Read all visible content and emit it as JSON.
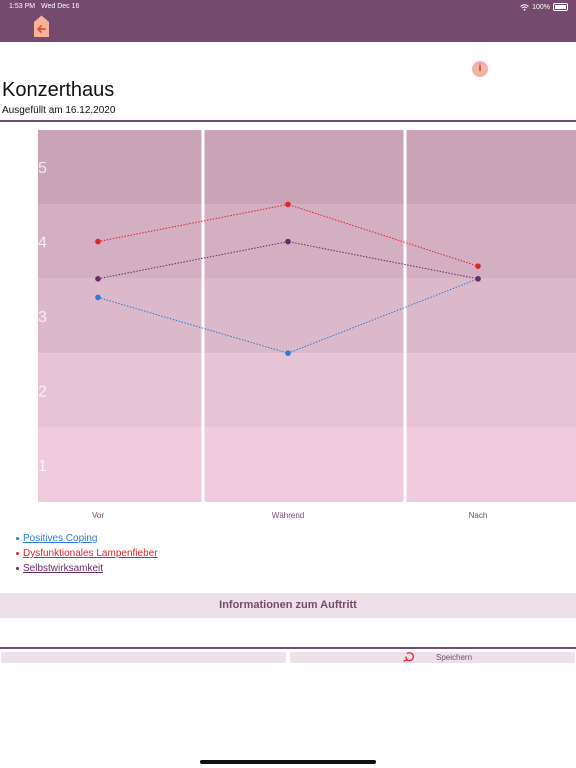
{
  "status_bar": {
    "time": "1:53 PM",
    "date": "Wed Dec 16",
    "battery": "100%"
  },
  "header": {
    "title": "Konzerthaus",
    "subtitle": "Ausgefüllt am 16.12.2020"
  },
  "colors": {
    "brand": "#744b6e",
    "series_blue": "#2b7bd8",
    "series_red": "#e0242b",
    "series_purple": "#6b2c66"
  },
  "chart_data": {
    "type": "line",
    "categories": [
      "Vor",
      "Während",
      "Nach"
    ],
    "ylim": [
      0.5,
      5.5
    ],
    "yticks": [
      "1",
      "2",
      "3",
      "4",
      "5"
    ],
    "series": [
      {
        "name": "Positives Coping",
        "values": [
          3.25,
          2.5,
          3.5
        ]
      },
      {
        "name": "Dysfunktionales Lampenfieber",
        "values": [
          4.0,
          4.5,
          3.67
        ]
      },
      {
        "name": "Selbstwirksamkeit",
        "values": [
          3.5,
          4.0,
          3.5
        ]
      }
    ]
  },
  "legend": [
    {
      "label": "Positives Coping"
    },
    {
      "label": "Dysfunktionales Lampenfieber"
    },
    {
      "label": "Selbstwirksamkeit"
    }
  ],
  "section": {
    "title": "Informationen zum Auftritt"
  },
  "toolbar": {
    "save_label": "Speichern"
  },
  "icons": {
    "back": "arrow-left-icon",
    "info": "info-icon",
    "save": "undo-arrow-icon"
  }
}
